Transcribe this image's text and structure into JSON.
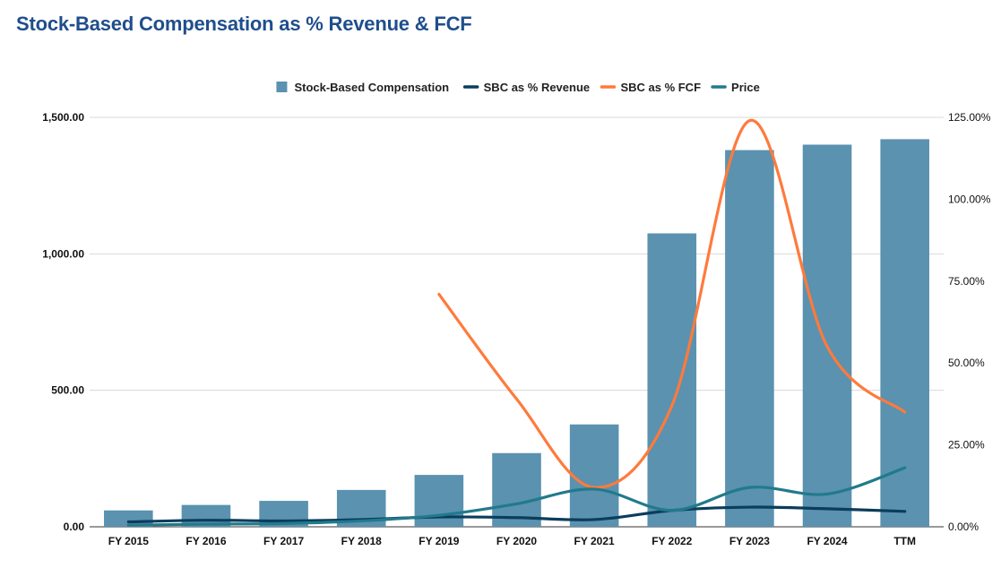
{
  "page_title": "Stock-Based Compensation as % Revenue & FCF",
  "chart_data": {
    "type": "bar",
    "title": "Stock-Based Compensation as % Revenue & FCF",
    "categories": [
      "FY 2015",
      "FY 2016",
      "FY 2017",
      "FY 2018",
      "FY 2019",
      "FY 2020",
      "FY 2021",
      "FY 2022",
      "FY 2023",
      "FY 2024",
      "TTM"
    ],
    "y_left": {
      "min": 0,
      "max": 1500,
      "ticks": [
        0,
        500,
        1000,
        1500
      ],
      "tick_labels": [
        "0.00",
        "500.00",
        "1,000.00",
        "1,500.00"
      ]
    },
    "y_right": {
      "min": 0,
      "max": 1.25,
      "ticks": [
        0,
        0.25,
        0.5,
        0.75,
        1.0,
        1.25
      ],
      "tick_labels": [
        "0.00%",
        "25.00%",
        "50.00%",
        "75.00%",
        "100.00%",
        "125.00%"
      ]
    },
    "grid": true,
    "legend_position": "top-center",
    "series": [
      {
        "name": "Stock-Based Compensation",
        "kind": "bar",
        "axis": "left",
        "color": "#5a92b0",
        "values": [
          60,
          80,
          95,
          135,
          190,
          270,
          375,
          1075,
          1380,
          1400,
          1420
        ]
      },
      {
        "name": "SBC as % Revenue",
        "kind": "line",
        "axis": "right",
        "color": "#0b3d5c",
        "values": [
          0.015,
          0.02,
          0.018,
          0.022,
          0.03,
          0.028,
          0.022,
          0.05,
          0.06,
          0.055,
          0.047
        ]
      },
      {
        "name": "SBC as % FCF",
        "kind": "line",
        "axis": "right",
        "color": "#ff7a3c",
        "values": [
          null,
          null,
          null,
          null,
          0.71,
          0.39,
          0.12,
          0.37,
          1.24,
          0.55,
          0.35
        ]
      },
      {
        "name": "Price",
        "kind": "line",
        "axis": "right",
        "color": "#217a8c",
        "values": [
          0.005,
          0.008,
          0.01,
          0.018,
          0.035,
          0.07,
          0.115,
          0.05,
          0.12,
          0.1,
          0.18
        ]
      }
    ]
  }
}
